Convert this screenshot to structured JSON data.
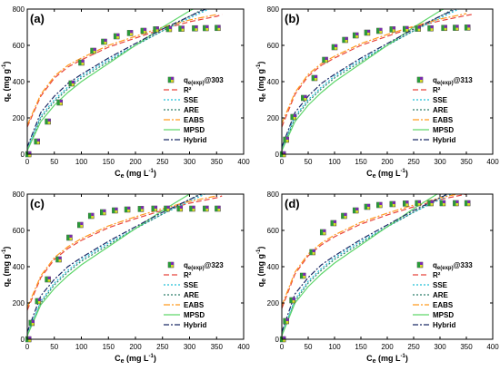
{
  "figure": {
    "panels_label": "4 isotherm model fits",
    "legend_entries": [
      "R²",
      "SSE",
      "ARE",
      "EABS",
      "MPSD",
      "Hybrid"
    ]
  },
  "styles": {
    "R2": {
      "color": "#e8453c",
      "dash": "6,3"
    },
    "SSE": {
      "color": "#22c0d8",
      "dash": "2,2"
    },
    "ARE": {
      "color": "#2e7d6a",
      "dash": "2,2"
    },
    "EABS": {
      "color": "#ff9a1f",
      "dash": "7,2,2,2"
    },
    "MPSD": {
      "color": "#5fd66b",
      "dash": ""
    },
    "Hybrid": {
      "color": "#1a2a66",
      "dash": "6,2,2,2"
    }
  },
  "chart_data": [
    {
      "type": "scatter",
      "panel": "(a)",
      "xlabel_main": "C",
      "xlabel_sub": "e",
      "xlabel_unit": "(mg L",
      "xlabel_sup": "-1",
      "ylabel_main": "q",
      "ylabel_sub": "e",
      "ylabel_unit": "(mg g",
      "ylabel_sup": "-1",
      "xlim": [
        0,
        400
      ],
      "ylim": [
        0,
        800
      ],
      "xticks": [
        "0",
        "50",
        "100",
        "150",
        "200",
        "250",
        "300",
        "350",
        "400"
      ],
      "yticks": [
        "0",
        "200",
        "400",
        "600",
        "800"
      ],
      "legend_scatter": "q",
      "legend_scatter_sub": "e(exp)",
      "legend_scatter_suffix": "@303",
      "series": [
        {
          "name": "qe(exp)@303",
          "kind": "points",
          "x": [
            2,
            18,
            38,
            60,
            82,
            100,
            122,
            142,
            165,
            190,
            215,
            238,
            262,
            285,
            310,
            330,
            352
          ],
          "y": [
            0,
            70,
            180,
            285,
            390,
            505,
            570,
            620,
            650,
            668,
            680,
            688,
            690,
            692,
            694,
            695,
            696
          ]
        },
        {
          "name": "R²",
          "kind": "curve",
          "x": [
            0,
            25,
            50,
            75,
            100,
            150,
            200,
            250,
            300,
            350,
            360
          ],
          "y": [
            150,
            320,
            420,
            480,
            520,
            590,
            640,
            690,
            730,
            760,
            770
          ]
        },
        {
          "name": "SSE",
          "kind": "curve",
          "x": [
            0,
            25,
            50,
            75,
            100,
            150,
            200,
            250,
            300,
            350
          ],
          "y": [
            30,
            210,
            300,
            370,
            430,
            520,
            600,
            680,
            750,
            820
          ]
        },
        {
          "name": "ARE",
          "kind": "curve",
          "x": [
            0,
            25,
            50,
            75,
            100,
            150,
            200,
            250,
            300,
            350
          ],
          "y": [
            20,
            200,
            290,
            360,
            420,
            510,
            600,
            680,
            760,
            840
          ]
        },
        {
          "name": "EABS",
          "kind": "curve",
          "x": [
            0,
            25,
            50,
            75,
            100,
            150,
            200,
            250,
            300,
            350
          ],
          "y": [
            160,
            330,
            430,
            490,
            530,
            600,
            650,
            700,
            740,
            770
          ]
        },
        {
          "name": "MPSD",
          "kind": "curve",
          "x": [
            0,
            25,
            50,
            75,
            100,
            150,
            200,
            250,
            300,
            320
          ],
          "y": [
            20,
            180,
            270,
            340,
            400,
            500,
            600,
            700,
            790,
            820
          ]
        },
        {
          "name": "Hybrid",
          "kind": "curve",
          "x": [
            0,
            25,
            50,
            75,
            100,
            150,
            200,
            250,
            300,
            330
          ],
          "y": [
            40,
            230,
            320,
            390,
            440,
            530,
            610,
            690,
            760,
            800
          ]
        }
      ]
    },
    {
      "type": "scatter",
      "panel": "(b)",
      "xlabel_main": "C",
      "xlabel_sub": "e",
      "xlabel_unit": "(mg L",
      "xlabel_sup": "-1",
      "ylabel_main": "q",
      "ylabel_sub": "e",
      "ylabel_unit": "(mg g",
      "ylabel_sup": "-1",
      "xlim": [
        0,
        400
      ],
      "ylim": [
        0,
        800
      ],
      "xticks": [
        "0",
        "50",
        "100",
        "150",
        "200",
        "250",
        "300",
        "350",
        "400"
      ],
      "yticks": [
        "0",
        "200",
        "400",
        "600",
        "800"
      ],
      "legend_scatter": "q",
      "legend_scatter_sub": "e(exp)",
      "legend_scatter_suffix": "@313",
      "series": [
        {
          "name": "qe(exp)@313",
          "kind": "points",
          "x": [
            2,
            8,
            22,
            42,
            62,
            82,
            100,
            120,
            140,
            162,
            185,
            210,
            235,
            258,
            282,
            308,
            330,
            352
          ],
          "y": [
            0,
            80,
            205,
            310,
            420,
            520,
            590,
            630,
            655,
            670,
            680,
            688,
            690,
            692,
            694,
            696,
            697,
            698
          ]
        },
        {
          "name": "R²",
          "kind": "curve",
          "x": [
            0,
            25,
            50,
            75,
            100,
            150,
            200,
            250,
            300,
            350,
            360
          ],
          "y": [
            150,
            330,
            430,
            490,
            530,
            600,
            650,
            700,
            735,
            765,
            770
          ]
        },
        {
          "name": "SSE",
          "kind": "curve",
          "x": [
            0,
            25,
            50,
            75,
            100,
            150,
            200,
            250,
            300,
            350
          ],
          "y": [
            30,
            210,
            300,
            370,
            430,
            520,
            600,
            680,
            750,
            820
          ]
        },
        {
          "name": "ARE",
          "kind": "curve",
          "x": [
            0,
            25,
            50,
            75,
            100,
            150,
            200,
            250,
            300,
            350
          ],
          "y": [
            20,
            200,
            290,
            360,
            420,
            510,
            600,
            680,
            760,
            840
          ]
        },
        {
          "name": "EABS",
          "kind": "curve",
          "x": [
            0,
            25,
            50,
            75,
            100,
            150,
            200,
            250,
            300,
            350
          ],
          "y": [
            170,
            340,
            440,
            500,
            540,
            610,
            660,
            705,
            745,
            775
          ]
        },
        {
          "name": "MPSD",
          "kind": "curve",
          "x": [
            0,
            25,
            50,
            75,
            100,
            150,
            200,
            250,
            300,
            320
          ],
          "y": [
            20,
            180,
            270,
            340,
            400,
            500,
            600,
            700,
            790,
            820
          ]
        },
        {
          "name": "Hybrid",
          "kind": "curve",
          "x": [
            0,
            25,
            50,
            75,
            100,
            150,
            200,
            250,
            300,
            330
          ],
          "y": [
            40,
            230,
            320,
            390,
            440,
            530,
            610,
            690,
            760,
            800
          ]
        }
      ]
    },
    {
      "type": "scatter",
      "panel": "(c)",
      "xlabel_main": "C",
      "xlabel_sub": "e",
      "xlabel_unit": "(mg L",
      "xlabel_sup": "-1",
      "ylabel_main": "q",
      "ylabel_sub": "e",
      "ylabel_unit": "(mg g",
      "ylabel_sup": "-1",
      "xlim": [
        0,
        400
      ],
      "ylim": [
        0,
        800
      ],
      "xticks": [
        "0",
        "50",
        "100",
        "150",
        "200",
        "250",
        "300",
        "350",
        "400"
      ],
      "yticks": [
        "0",
        "200",
        "400",
        "600",
        "800"
      ],
      "legend_scatter": "q",
      "legend_scatter_sub": "e(exp)",
      "legend_scatter_suffix": "@323",
      "series": [
        {
          "name": "qe(exp)@323",
          "kind": "points",
          "x": [
            2,
            8,
            20,
            38,
            58,
            78,
            98,
            118,
            140,
            162,
            185,
            210,
            235,
            258,
            282,
            305,
            330,
            352
          ],
          "y": [
            0,
            90,
            210,
            330,
            440,
            560,
            630,
            680,
            700,
            710,
            715,
            718,
            720,
            720,
            720,
            720,
            720,
            720
          ]
        },
        {
          "name": "R²",
          "kind": "curve",
          "x": [
            0,
            25,
            50,
            75,
            100,
            150,
            200,
            250,
            300,
            350,
            360
          ],
          "y": [
            160,
            340,
            440,
            500,
            545,
            615,
            665,
            710,
            750,
            780,
            790
          ]
        },
        {
          "name": "SSE",
          "kind": "curve",
          "x": [
            0,
            25,
            50,
            75,
            100,
            150,
            200,
            250,
            300,
            350
          ],
          "y": [
            30,
            210,
            310,
            380,
            440,
            530,
            610,
            690,
            760,
            830
          ]
        },
        {
          "name": "ARE",
          "kind": "curve",
          "x": [
            0,
            25,
            50,
            75,
            100,
            150,
            200,
            250,
            300,
            350
          ],
          "y": [
            20,
            200,
            300,
            370,
            430,
            520,
            610,
            690,
            770,
            850
          ]
        },
        {
          "name": "EABS",
          "kind": "curve",
          "x": [
            0,
            25,
            50,
            75,
            100,
            150,
            200,
            250,
            300,
            350
          ],
          "y": [
            175,
            350,
            450,
            510,
            555,
            625,
            675,
            720,
            760,
            790
          ]
        },
        {
          "name": "MPSD",
          "kind": "curve",
          "x": [
            0,
            25,
            50,
            75,
            100,
            150,
            200,
            250,
            300,
            320
          ],
          "y": [
            20,
            190,
            280,
            350,
            410,
            510,
            610,
            710,
            800,
            830
          ]
        },
        {
          "name": "Hybrid",
          "kind": "curve",
          "x": [
            0,
            25,
            50,
            75,
            100,
            150,
            200,
            250,
            300,
            330
          ],
          "y": [
            40,
            240,
            330,
            400,
            450,
            540,
            620,
            700,
            770,
            810
          ]
        }
      ]
    },
    {
      "type": "scatter",
      "panel": "(d)",
      "xlabel_main": "C",
      "xlabel_sub": "e",
      "xlabel_unit": "(mg L",
      "xlabel_sup": "-1",
      "ylabel_main": "q",
      "ylabel_sub": "e",
      "ylabel_unit": "(mg g",
      "ylabel_sup": "-1",
      "xlim": [
        0,
        400
      ],
      "ylim": [
        0,
        800
      ],
      "xticks": [
        "0",
        "50",
        "100",
        "150",
        "200",
        "250",
        "300",
        "350",
        "400"
      ],
      "yticks": [
        "0",
        "200",
        "400",
        "600",
        "800"
      ],
      "legend_scatter": "q",
      "legend_scatter_sub": "e(exp)",
      "legend_scatter_suffix": "@333",
      "series": [
        {
          "name": "qe(exp)@333",
          "kind": "points",
          "x": [
            2,
            8,
            20,
            40,
            58,
            78,
            98,
            118,
            140,
            162,
            185,
            210,
            235,
            258,
            282,
            305,
            330,
            352
          ],
          "y": [
            0,
            100,
            215,
            350,
            480,
            590,
            640,
            680,
            710,
            730,
            740,
            745,
            748,
            750,
            750,
            750,
            750,
            750
          ]
        },
        {
          "name": "R²",
          "kind": "curve",
          "x": [
            0,
            25,
            50,
            75,
            100,
            150,
            200,
            250,
            300,
            350,
            360
          ],
          "y": [
            170,
            360,
            460,
            520,
            565,
            635,
            685,
            730,
            770,
            800,
            805
          ]
        },
        {
          "name": "SSE",
          "kind": "curve",
          "x": [
            0,
            25,
            50,
            75,
            100,
            150,
            200,
            250,
            300,
            350
          ],
          "y": [
            30,
            220,
            320,
            390,
            450,
            540,
            620,
            700,
            770,
            840
          ]
        },
        {
          "name": "ARE",
          "kind": "curve",
          "x": [
            0,
            25,
            50,
            75,
            100,
            150,
            200,
            250,
            300,
            350
          ],
          "y": [
            20,
            210,
            310,
            380,
            440,
            530,
            620,
            700,
            780,
            860
          ]
        },
        {
          "name": "EABS",
          "kind": "curve",
          "x": [
            0,
            25,
            50,
            75,
            100,
            150,
            200,
            250,
            300,
            350
          ],
          "y": [
            185,
            370,
            470,
            530,
            575,
            645,
            695,
            740,
            780,
            810
          ]
        },
        {
          "name": "MPSD",
          "kind": "curve",
          "x": [
            0,
            25,
            50,
            75,
            100,
            150,
            200,
            250,
            300,
            320
          ],
          "y": [
            20,
            200,
            290,
            360,
            420,
            520,
            620,
            720,
            810,
            840
          ]
        },
        {
          "name": "Hybrid",
          "kind": "curve",
          "x": [
            0,
            25,
            50,
            75,
            100,
            150,
            200,
            250,
            300,
            330
          ],
          "y": [
            40,
            250,
            340,
            410,
            460,
            550,
            630,
            710,
            780,
            820
          ]
        }
      ]
    }
  ]
}
